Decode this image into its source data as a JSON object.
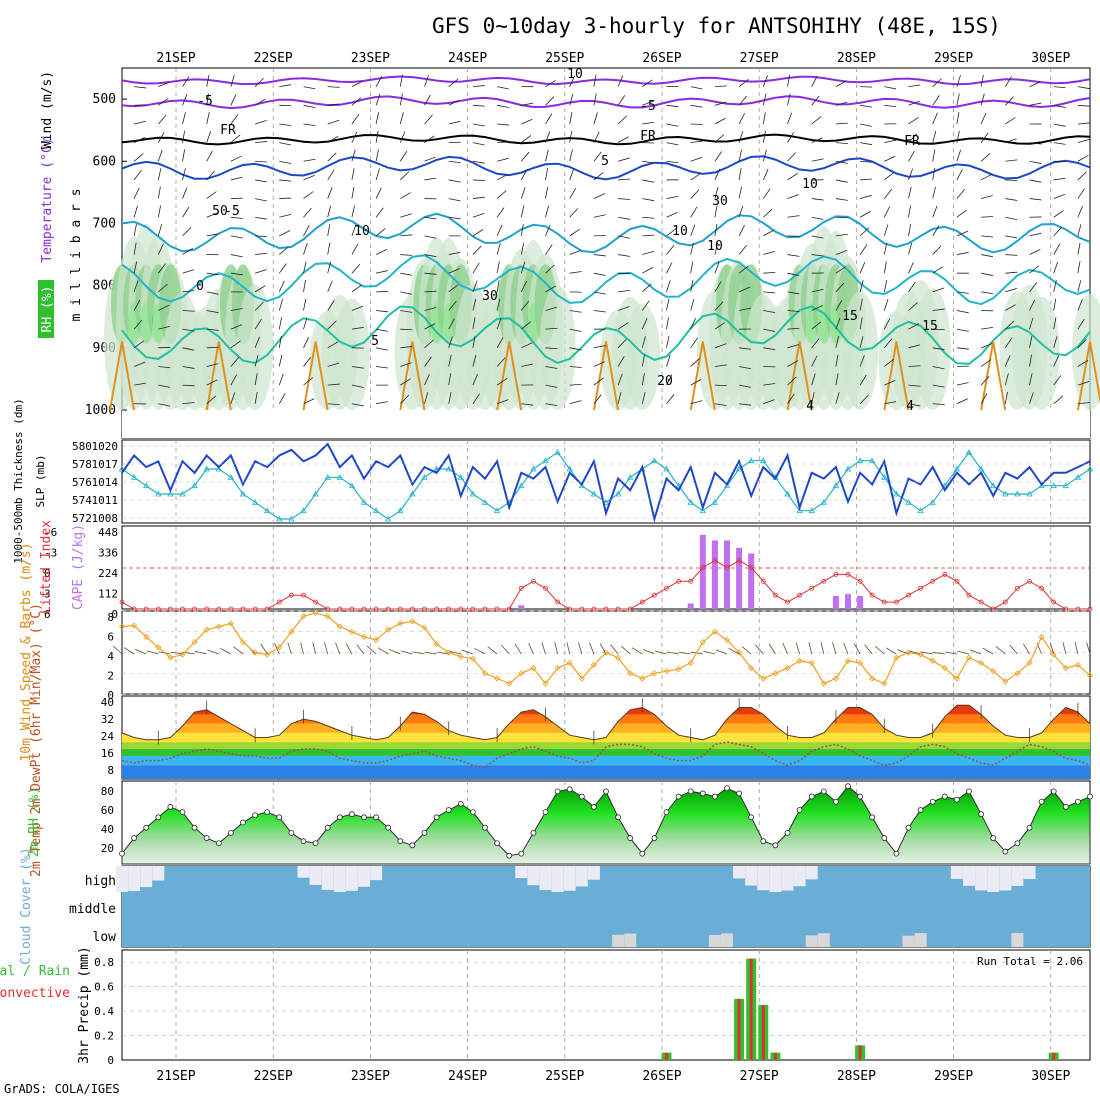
{
  "title": "GFS 0~10day 3-hourly for ANTSOHIHY (48E, 15S)",
  "footer": "GrADS: COLA/IGES",
  "dates": [
    "21SEP",
    "22SEP",
    "23SEP",
    "24SEP",
    "25SEP",
    "26SEP",
    "27SEP",
    "28SEP",
    "29SEP",
    "30SEP"
  ],
  "colors": {
    "rh_green": "#2fbf2f",
    "temp_blue": "#1e46c8",
    "cyan": "#22b4c8",
    "cape": "#c070f0",
    "li": "#e03030",
    "wind": "#f0a020",
    "cloud": "#6aaed6",
    "precip_green": "#30c030",
    "precip_red": "#e03030"
  },
  "chart_data": [
    {
      "panel": "upper-air",
      "type": "contour",
      "ylabel": "m i l l i b a r s",
      "side_labels": [
        "RH (%)",
        "Temperature (°C)",
        "Wind (m/s)"
      ],
      "yticks": [
        500,
        600,
        700,
        800,
        900,
        1000
      ],
      "ylim": [
        450,
        1000
      ],
      "contour_labels": [
        "10",
        "-5",
        "-5",
        "FR",
        "FR",
        "FR",
        "5",
        "10",
        "10",
        "-5",
        "0",
        "5",
        "10",
        "15",
        "20",
        "30",
        "30",
        "50",
        "10",
        "4",
        "4",
        "15"
      ]
    },
    {
      "panel": "thickness-slp",
      "type": "line",
      "ylabel_left": "1000-500mb Thickness (dm)",
      "ylabel_right": "SLP (mb)",
      "yticks_left": [
        "580",
        "578",
        "576",
        "574",
        "572"
      ],
      "yticks_right": [
        "1020",
        "1017",
        "1014",
        "1011",
        "1008"
      ],
      "series": [
        {
          "name": "SLP",
          "unit": "mb",
          "ylim": [
            1008,
            1021
          ],
          "values": [
            1016,
            1019,
            1017,
            1018,
            1013,
            1018,
            1016,
            1019,
            1017,
            1019,
            1014,
            1018,
            1017,
            1019,
            1020,
            1018,
            1019,
            1021,
            1017,
            1019,
            1015,
            1018,
            1017,
            1019,
            1014,
            1017,
            1016,
            1019,
            1012,
            1017,
            1015,
            1018,
            1010,
            1016,
            1015,
            1017,
            1011,
            1016,
            1014,
            1018,
            1009,
            1015,
            1013,
            1017,
            1008,
            1015,
            1013,
            1017,
            1010,
            1016,
            1014,
            1018,
            1012,
            1017,
            1015,
            1019,
            1010,
            1016,
            1015,
            1017,
            1011,
            1016,
            1014,
            1018,
            1009,
            1015,
            1014,
            1017,
            1013,
            1016,
            1014,
            1016,
            1012,
            1016,
            1015,
            1017,
            1014,
            1016,
            1016,
            1017,
            1018
          ]
        },
        {
          "name": "Thickness",
          "unit": "dm",
          "ylim": [
            572,
            581
          ],
          "values": [
            578,
            577,
            576,
            575,
            575,
            575,
            576,
            578,
            578,
            577,
            575,
            574,
            573,
            572,
            572,
            573,
            575,
            577,
            577,
            576,
            574,
            573,
            572,
            573,
            575,
            577,
            578,
            578,
            577,
            575,
            574,
            573,
            574,
            576,
            578,
            579,
            580,
            578,
            576,
            575,
            574,
            575,
            577,
            578,
            579,
            578,
            576,
            574,
            573,
            574,
            576,
            578,
            579,
            579,
            577,
            575,
            573,
            573,
            574,
            576,
            578,
            579,
            579,
            577,
            575,
            574,
            573,
            574,
            576,
            578,
            580,
            578,
            576,
            575,
            575,
            575,
            576,
            576,
            576,
            577,
            578
          ]
        }
      ]
    },
    {
      "panel": "stability",
      "type": "bar+line",
      "ylabel_left": "Lifted Index",
      "ylabel_right": "CAPE (J/kg)",
      "yticks_left": [
        "-6",
        "-3",
        "0",
        "3",
        "6"
      ],
      "yticks_right": [
        "448",
        "336",
        "224",
        "112",
        "0"
      ],
      "cape_values": [
        0,
        0,
        0,
        0,
        0,
        0,
        0,
        0,
        0,
        0,
        0,
        0,
        0,
        0,
        0,
        0,
        0,
        0,
        0,
        0,
        0,
        0,
        0,
        0,
        0,
        0,
        0,
        0,
        0,
        0,
        0,
        0,
        0,
        20,
        0,
        0,
        0,
        0,
        0,
        0,
        0,
        0,
        0,
        0,
        0,
        0,
        0,
        30,
        400,
        370,
        370,
        330,
        300,
        0,
        0,
        0,
        0,
        0,
        0,
        70,
        80,
        70,
        0,
        0,
        0,
        0,
        0,
        0,
        0,
        0,
        0,
        0,
        0,
        0,
        0,
        0,
        0,
        0,
        0,
        0,
        0
      ],
      "li_values": [
        5,
        6,
        6,
        6,
        6,
        6,
        6,
        6,
        6,
        6,
        6,
        6,
        6,
        5,
        4,
        4,
        5,
        6,
        6,
        6,
        6,
        6,
        6,
        6,
        6,
        6,
        6,
        6,
        6,
        6,
        6,
        6,
        6,
        3,
        2,
        3,
        5,
        6,
        6,
        6,
        6,
        6,
        6,
        5,
        4,
        3,
        2,
        2,
        0,
        -1,
        0,
        -1,
        0,
        2,
        4,
        5,
        4,
        3,
        2,
        1,
        1,
        2,
        4,
        5,
        5,
        4,
        3,
        2,
        1,
        2,
        4,
        5,
        6,
        5,
        3,
        2,
        3,
        5,
        6,
        6,
        6
      ],
      "ylim_cape": [
        0,
        448
      ],
      "ylim_li": [
        6,
        -6
      ]
    },
    {
      "panel": "wind10m",
      "type": "line",
      "ylabel": "10m Wind Speed & Barbs (m/s)",
      "yticks": [
        "8",
        "6",
        "4",
        "2",
        "0"
      ],
      "ylim": [
        0,
        8
      ],
      "values": [
        6.5,
        6.6,
        5.5,
        4.5,
        3.5,
        3.8,
        5,
        6.2,
        6.5,
        6.8,
        5,
        4,
        3.8,
        4.5,
        6,
        7.5,
        7.8,
        7.5,
        6.5,
        6,
        5.5,
        5.2,
        6.2,
        6.8,
        7,
        6.4,
        4.8,
        4,
        3.6,
        3.4,
        2,
        1.5,
        1,
        2,
        2.5,
        1,
        2.5,
        3,
        1.5,
        2.8,
        4,
        3.5,
        2,
        1.5,
        2,
        2.2,
        2.4,
        3,
        5,
        6,
        5.2,
        4,
        2.5,
        1.5,
        2,
        2.5,
        3.2,
        3,
        1,
        1.5,
        3.2,
        3,
        1.5,
        1,
        3.5,
        4,
        3.8,
        3.2,
        2.5,
        1.5,
        3.5,
        3,
        2.2,
        1.2,
        2,
        3,
        5.5,
        3.8,
        2.5,
        2.8,
        1.8
      ]
    },
    {
      "panel": "temperature",
      "type": "area",
      "ylabel": "2m Temp 2m DewPt (6hr Min/Max) (°C)",
      "yticks": [
        "40",
        "32",
        "24",
        "16",
        "8"
      ],
      "ylim": [
        4,
        40
      ],
      "temp": [
        24,
        22,
        21,
        21,
        22,
        27,
        33,
        34,
        31,
        28,
        25,
        22,
        22,
        23,
        28,
        30,
        29,
        27,
        25,
        23,
        22,
        21,
        22,
        27,
        33,
        32,
        29,
        25,
        23,
        22,
        21,
        22,
        28,
        33,
        34,
        31,
        27,
        23,
        22,
        21,
        22,
        29,
        34,
        35,
        32,
        27,
        23,
        22,
        21,
        23,
        30,
        35,
        35,
        32,
        27,
        23,
        22,
        22,
        24,
        30,
        35,
        35,
        32,
        26,
        23,
        22,
        22,
        24,
        31,
        36,
        36,
        32,
        27,
        23,
        22,
        22,
        24,
        30,
        35,
        33,
        28
      ],
      "dewpt": [
        12,
        11,
        12,
        12,
        13,
        15,
        16,
        17,
        16,
        15,
        14,
        14,
        13,
        13,
        16,
        17,
        17,
        16,
        13,
        12,
        11,
        11,
        12,
        14,
        15,
        16,
        14,
        13,
        12,
        10,
        9,
        13,
        15,
        17,
        18,
        16,
        14,
        13,
        11,
        12,
        18,
        19,
        19,
        18,
        15,
        13,
        12,
        12,
        14,
        19,
        20,
        19,
        18,
        15,
        12,
        10,
        12,
        16,
        18,
        19,
        17,
        14,
        12,
        10,
        11,
        14,
        18,
        19,
        18,
        15,
        13,
        11,
        10,
        13,
        16,
        19,
        18,
        16,
        13,
        12,
        10
      ]
    },
    {
      "panel": "rh2m",
      "type": "area",
      "ylabel": "2m RH (%)",
      "yticks": [
        "80",
        "60",
        "40",
        "20"
      ],
      "ylim": [
        10,
        90
      ],
      "values": [
        20,
        35,
        45,
        55,
        65,
        60,
        45,
        35,
        30,
        40,
        50,
        57,
        60,
        55,
        40,
        32,
        30,
        45,
        55,
        58,
        55,
        55,
        45,
        32,
        28,
        40,
        55,
        62,
        68,
        60,
        45,
        30,
        18,
        20,
        40,
        60,
        80,
        82,
        75,
        65,
        80,
        55,
        35,
        20,
        35,
        60,
        75,
        80,
        78,
        75,
        83,
        78,
        55,
        32,
        28,
        40,
        62,
        75,
        80,
        70,
        85,
        75,
        55,
        35,
        20,
        45,
        62,
        70,
        75,
        72,
        80,
        58,
        35,
        22,
        30,
        45,
        70,
        80,
        65,
        70,
        75
      ]
    },
    {
      "panel": "cloud",
      "type": "heatmap",
      "ylabel": "Cloud Cover (%)",
      "levels": [
        "high",
        "middle",
        "low"
      ]
    },
    {
      "panel": "precip",
      "type": "bar",
      "ylabel": "3hr Precip (mm)",
      "yticks": [
        "0.8",
        "0.6",
        "0.4",
        "0.2",
        "0"
      ],
      "ylim": [
        0,
        0.9
      ],
      "run_total_label": "Run Total = 2.06",
      "legend": [
        "Total / Rain",
        "Convective"
      ],
      "values": [
        0,
        0,
        0,
        0,
        0,
        0,
        0,
        0,
        0,
        0,
        0,
        0,
        0,
        0,
        0,
        0,
        0,
        0,
        0,
        0,
        0,
        0,
        0,
        0,
        0,
        0,
        0,
        0,
        0,
        0,
        0,
        0,
        0,
        0,
        0,
        0,
        0,
        0,
        0,
        0,
        0,
        0,
        0,
        0,
        0,
        0.06,
        0,
        0,
        0,
        0,
        0,
        0.5,
        0.83,
        0.45,
        0.06,
        0,
        0,
        0,
        0,
        0,
        0,
        0.12,
        0,
        0,
        0,
        0,
        0,
        0,
        0,
        0,
        0,
        0,
        0,
        0,
        0,
        0,
        0,
        0.06,
        0,
        0,
        0
      ]
    }
  ]
}
